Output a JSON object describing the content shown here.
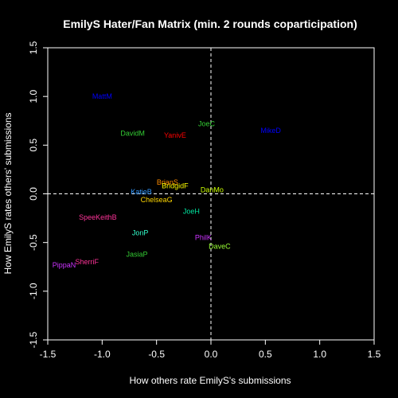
{
  "chart_data": {
    "type": "scatter",
    "title": "EmilyS Hater/Fan Matrix (min. 2 rounds coparticipation)",
    "xlabel": "How others rate EmilyS's submissions",
    "ylabel": "How EmilyS rates others' submissions",
    "xlim": [
      -1.5,
      1.5
    ],
    "ylim": [
      -1.5,
      1.5
    ],
    "xticks": [
      "-1.5",
      "-1.0",
      "-0.5",
      "0.0",
      "0.5",
      "1.0",
      "1.5"
    ],
    "yticks": [
      "-1.5",
      "-1.0",
      "-0.5",
      "0.0",
      "0.5",
      "1.0",
      "1.5"
    ],
    "grid": false,
    "reference_lines": {
      "x": 0,
      "y": 0,
      "style": "dashed"
    },
    "points": [
      {
        "label": "MattM",
        "x": -1.0,
        "y": 1.0,
        "color": "#0000ff"
      },
      {
        "label": "MikeD",
        "x": 0.55,
        "y": 0.65,
        "color": "#0000ff"
      },
      {
        "label": "DavidM",
        "x": -0.72,
        "y": 0.62,
        "color": "#33cc33"
      },
      {
        "label": "YanivE",
        "x": -0.33,
        "y": 0.6,
        "color": "#ff0000"
      },
      {
        "label": "JoeC",
        "x": -0.04,
        "y": 0.72,
        "color": "#33cc33"
      },
      {
        "label": "BrianS",
        "x": -0.4,
        "y": 0.12,
        "color": "#ff8c00"
      },
      {
        "label": "BridgidF",
        "x": -0.33,
        "y": 0.08,
        "color": "#ffff00"
      },
      {
        "label": "KatieB",
        "x": -0.64,
        "y": 0.02,
        "color": "#3399ff"
      },
      {
        "label": "DanMo",
        "x": 0.01,
        "y": 0.04,
        "color": "#ccff00"
      },
      {
        "label": "ChelseaG",
        "x": -0.5,
        "y": -0.06,
        "color": "#ffd700"
      },
      {
        "label": "JoeH",
        "x": -0.18,
        "y": -0.18,
        "color": "#00e5a0"
      },
      {
        "label": "SpeeKeithB",
        "x": -1.04,
        "y": -0.24,
        "color": "#ff3399"
      },
      {
        "label": "JonP",
        "x": -0.65,
        "y": -0.4,
        "color": "#33ffcc"
      },
      {
        "label": "PhilK",
        "x": -0.07,
        "y": -0.45,
        "color": "#cc33ff"
      },
      {
        "label": "DaveC",
        "x": 0.08,
        "y": -0.54,
        "color": "#99ff33"
      },
      {
        "label": "JasiaP",
        "x": -0.68,
        "y": -0.62,
        "color": "#33cc33"
      },
      {
        "label": "SherriF",
        "x": -1.14,
        "y": -0.7,
        "color": "#ff3399"
      },
      {
        "label": "PippaN",
        "x": -1.35,
        "y": -0.73,
        "color": "#cc33ff"
      }
    ]
  }
}
